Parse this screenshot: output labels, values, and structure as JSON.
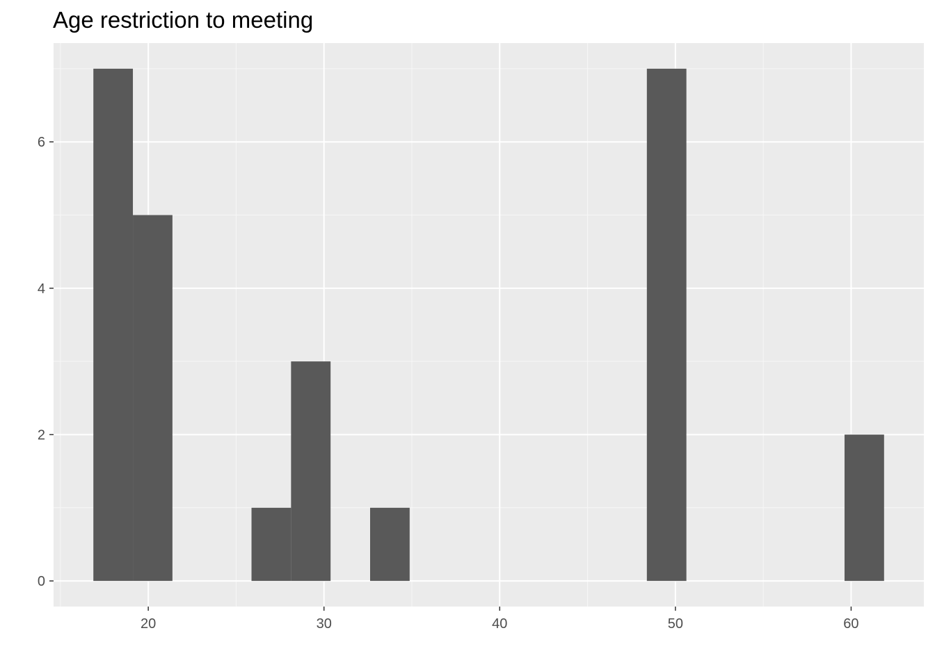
{
  "chart_data": {
    "type": "bar",
    "title": "Age restriction to meeting",
    "xlabel": "",
    "ylabel": "",
    "bin_width": 2.25,
    "bins": [
      {
        "x_start": 16.875,
        "x_end": 19.125,
        "count": 7
      },
      {
        "x_start": 19.125,
        "x_end": 21.375,
        "count": 5
      },
      {
        "x_start": 21.375,
        "x_end": 23.625,
        "count": 0
      },
      {
        "x_start": 23.625,
        "x_end": 25.875,
        "count": 0
      },
      {
        "x_start": 25.875,
        "x_end": 28.125,
        "count": 1
      },
      {
        "x_start": 28.125,
        "x_end": 30.375,
        "count": 3
      },
      {
        "x_start": 30.375,
        "x_end": 32.625,
        "count": 0
      },
      {
        "x_start": 32.625,
        "x_end": 34.875,
        "count": 1
      },
      {
        "x_start": 34.875,
        "x_end": 37.125,
        "count": 0
      },
      {
        "x_start": 37.125,
        "x_end": 39.375,
        "count": 0
      },
      {
        "x_start": 39.375,
        "x_end": 41.625,
        "count": 0
      },
      {
        "x_start": 41.625,
        "x_end": 43.875,
        "count": 0
      },
      {
        "x_start": 43.875,
        "x_end": 46.125,
        "count": 0
      },
      {
        "x_start": 46.125,
        "x_end": 48.375,
        "count": 0
      },
      {
        "x_start": 48.375,
        "x_end": 50.625,
        "count": 7
      },
      {
        "x_start": 50.625,
        "x_end": 52.875,
        "count": 0
      },
      {
        "x_start": 52.875,
        "x_end": 55.125,
        "count": 0
      },
      {
        "x_start": 55.125,
        "x_end": 57.375,
        "count": 0
      },
      {
        "x_start": 57.375,
        "x_end": 59.625,
        "count": 0
      },
      {
        "x_start": 59.625,
        "x_end": 61.875,
        "count": 2
      }
    ],
    "xlim": [
      14.61,
      64.14
    ],
    "ylim": [
      -0.35,
      7.35
    ],
    "x_ticks": [
      20,
      30,
      40,
      50,
      60
    ],
    "x_minor_ticks": [
      15,
      25,
      35,
      45,
      55
    ],
    "y_ticks": [
      0,
      2,
      4,
      6
    ],
    "y_minor_ticks": [
      1,
      3,
      5,
      7
    ],
    "grid": true,
    "legend": "none",
    "colors": {
      "panel_background": "#ebebeb",
      "grid_major": "#ffffff",
      "grid_minor": "#f7f7f7",
      "bar_fill": "#595959",
      "tick_text": "#4d4d4d",
      "tick_mark": "#333333"
    }
  }
}
